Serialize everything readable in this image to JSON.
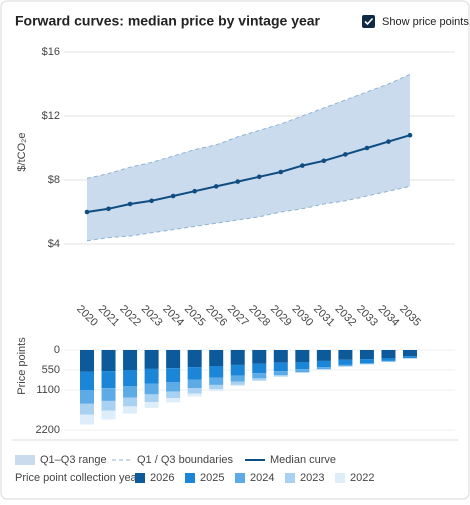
{
  "header": {
    "title": "Forward curves: median price by vintage year"
  },
  "controls": {
    "show_price_points": {
      "label": "Show price points",
      "checked": true
    }
  },
  "chart_data": [
    {
      "type": "line",
      "ylabel": "$/tCO₂e",
      "categories": [
        "2020",
        "2021",
        "2022",
        "2023",
        "2024",
        "2025",
        "2026",
        "2027",
        "2028",
        "2029",
        "2030",
        "2031",
        "2032",
        "2033",
        "2034",
        "2035"
      ],
      "ylim": [
        1,
        16
      ],
      "yticks": [
        {
          "value": 4,
          "label": "$4"
        },
        {
          "value": 8,
          "label": "$8"
        },
        {
          "value": 12,
          "label": "$12"
        },
        {
          "value": 16,
          "label": "$16"
        }
      ],
      "grid": true,
      "band": {
        "name": "Q1–Q3 range",
        "color": "#c9dbec",
        "upper": [
          8.1,
          8.4,
          8.8,
          9.1,
          9.5,
          9.9,
          10.2,
          10.7,
          11.1,
          11.5,
          12.0,
          12.5,
          13.0,
          13.5,
          14.0,
          14.6
        ],
        "lower": [
          4.2,
          4.4,
          4.5,
          4.7,
          4.9,
          5.1,
          5.3,
          5.5,
          5.7,
          6.0,
          6.2,
          6.5,
          6.7,
          7.0,
          7.3,
          7.6
        ]
      },
      "boundary": {
        "name": "Q1 / Q3 boundaries",
        "color": "#8fb2d2"
      },
      "series": [
        {
          "name": "Median curve",
          "color": "#0f4c81",
          "values": [
            6.0,
            6.2,
            6.5,
            6.7,
            7.0,
            7.3,
            7.6,
            7.9,
            8.2,
            8.5,
            8.9,
            9.2,
            9.6,
            10.0,
            10.4,
            10.8
          ]
        }
      ]
    },
    {
      "type": "bar",
      "stacked": true,
      "ylabel": "Price points",
      "ylim": [
        0,
        2200
      ],
      "yticks": [
        0,
        550,
        1100,
        2200
      ],
      "grid": true,
      "legend_title": "Price point collection year:",
      "series": [
        {
          "name": "2026",
          "color": "#0c5a99",
          "values": [
            600,
            580,
            550,
            520,
            500,
            470,
            440,
            410,
            380,
            350,
            330,
            300,
            270,
            250,
            220,
            170
          ]
        },
        {
          "name": "2025",
          "color": "#1b86d8",
          "values": [
            500,
            470,
            440,
            410,
            380,
            350,
            320,
            290,
            260,
            230,
            200,
            170,
            140,
            110,
            80,
            50
          ]
        },
        {
          "name": "2024",
          "color": "#5cabe6",
          "values": [
            380,
            350,
            320,
            290,
            260,
            230,
            200,
            170,
            140,
            110,
            80,
            60,
            40,
            30,
            20,
            10
          ]
        },
        {
          "name": "2023",
          "color": "#a9d1f1",
          "values": [
            300,
            270,
            240,
            210,
            180,
            150,
            120,
            90,
            60,
            40,
            20,
            10,
            5,
            5,
            5,
            5
          ]
        },
        {
          "name": "2022",
          "color": "#ddedf9",
          "values": [
            270,
            240,
            200,
            160,
            120,
            80,
            50,
            30,
            10,
            5,
            5,
            5,
            0,
            0,
            0,
            0
          ]
        }
      ]
    }
  ]
}
